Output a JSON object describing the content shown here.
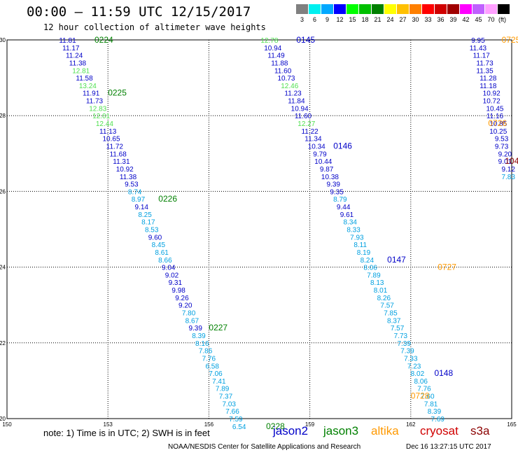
{
  "header": {
    "title": "00:00 – 11:59 UTC 12/15/2017",
    "subtitle": "12 hour collection of altimeter wave heights"
  },
  "legend": {
    "unit": "(ft)",
    "bins": [
      {
        "label": "3",
        "color": "#808080"
      },
      {
        "label": "6",
        "color": "#00f0f0"
      },
      {
        "label": "9",
        "color": "#00a8ff"
      },
      {
        "label": "12",
        "color": "#0000ff"
      },
      {
        "label": "15",
        "color": "#00ff00"
      },
      {
        "label": "18",
        "color": "#00c000"
      },
      {
        "label": "21",
        "color": "#008000"
      },
      {
        "label": "24",
        "color": "#ffff00"
      },
      {
        "label": "27",
        "color": "#ffc000"
      },
      {
        "label": "30",
        "color": "#ff8000"
      },
      {
        "label": "33",
        "color": "#ff0000"
      },
      {
        "label": "36",
        "color": "#d00000"
      },
      {
        "label": "39",
        "color": "#a00000"
      },
      {
        "label": "42",
        "color": "#ff00ff"
      },
      {
        "label": "45",
        "color": "#c060ff"
      },
      {
        "label": "70",
        "color": "#ffa0ff"
      },
      {
        "label": "",
        "color": "#000000"
      }
    ]
  },
  "axes": {
    "lon_ticks": [
      150,
      153,
      156,
      159,
      162,
      165
    ],
    "lat_ticks": [
      20,
      22,
      24,
      26,
      28,
      30
    ],
    "lon_range": [
      150,
      165
    ],
    "lat_range": [
      20,
      30
    ]
  },
  "colors": {
    "jason2": "#0000c8",
    "jason3": "#008000",
    "altika": "#ff9900",
    "cryosat": "#d00000",
    "s3a": "#8b0000",
    "label_blue": "#0000c8",
    "label_cyan": "#00a0e0",
    "label_lgreen": "#50e050"
  },
  "tracks": [
    {
      "sat": "jason2",
      "points": [
        {
          "v": "11.81",
          "lon": 151.8,
          "lat": 30.0,
          "c": "label_blue"
        },
        {
          "v": "11.17",
          "lon": 151.9,
          "lat": 29.8,
          "c": "label_blue"
        },
        {
          "v": "11.24",
          "lon": 152.0,
          "lat": 29.6,
          "c": "label_blue"
        },
        {
          "v": "11.38",
          "lon": 152.1,
          "lat": 29.4,
          "c": "label_blue"
        },
        {
          "v": "12.81",
          "lon": 152.2,
          "lat": 29.2,
          "c": "label_lgreen"
        },
        {
          "v": "11.58",
          "lon": 152.3,
          "lat": 29.0,
          "c": "label_blue"
        },
        {
          "v": "13.24",
          "lon": 152.4,
          "lat": 28.8,
          "c": "label_lgreen"
        },
        {
          "v": "11.91",
          "lon": 152.5,
          "lat": 28.6,
          "c": "label_blue"
        },
        {
          "v": "11.73",
          "lon": 152.6,
          "lat": 28.4,
          "c": "label_blue"
        },
        {
          "v": "12.83",
          "lon": 152.7,
          "lat": 28.2,
          "c": "label_lgreen"
        },
        {
          "v": "12.01",
          "lon": 152.8,
          "lat": 28.0,
          "c": "label_lgreen"
        },
        {
          "v": "12.44",
          "lon": 152.9,
          "lat": 27.8,
          "c": "label_lgreen"
        },
        {
          "v": "11.13",
          "lon": 153.0,
          "lat": 27.6,
          "c": "label_blue"
        },
        {
          "v": "10.65",
          "lon": 153.1,
          "lat": 27.4,
          "c": "label_blue"
        },
        {
          "v": "11.72",
          "lon": 153.2,
          "lat": 27.2,
          "c": "label_blue"
        },
        {
          "v": "11.68",
          "lon": 153.3,
          "lat": 27.0,
          "c": "label_blue"
        },
        {
          "v": "11.31",
          "lon": 153.4,
          "lat": 26.8,
          "c": "label_blue"
        },
        {
          "v": "10.92",
          "lon": 153.5,
          "lat": 26.6,
          "c": "label_blue"
        },
        {
          "v": "11.38",
          "lon": 153.6,
          "lat": 26.4,
          "c": "label_blue"
        },
        {
          "v": "9.53",
          "lon": 153.7,
          "lat": 26.2,
          "c": "label_blue"
        },
        {
          "v": "8.74",
          "lon": 153.8,
          "lat": 26.0,
          "c": "label_cyan"
        },
        {
          "v": "8.97",
          "lon": 153.9,
          "lat": 25.8,
          "c": "label_cyan"
        },
        {
          "v": "9.14",
          "lon": 154.0,
          "lat": 25.6,
          "c": "label_blue"
        },
        {
          "v": "8.25",
          "lon": 154.1,
          "lat": 25.4,
          "c": "label_cyan"
        },
        {
          "v": "8.17",
          "lon": 154.2,
          "lat": 25.2,
          "c": "label_cyan"
        },
        {
          "v": "8.53",
          "lon": 154.3,
          "lat": 25.0,
          "c": "label_cyan"
        },
        {
          "v": "9.60",
          "lon": 154.4,
          "lat": 24.8,
          "c": "label_blue"
        },
        {
          "v": "8.45",
          "lon": 154.5,
          "lat": 24.6,
          "c": "label_cyan"
        },
        {
          "v": "8.61",
          "lon": 154.6,
          "lat": 24.4,
          "c": "label_cyan"
        },
        {
          "v": "8.66",
          "lon": 154.7,
          "lat": 24.2,
          "c": "label_cyan"
        },
        {
          "v": "9.04",
          "lon": 154.8,
          "lat": 24.0,
          "c": "label_blue"
        },
        {
          "v": "9.02",
          "lon": 154.9,
          "lat": 23.8,
          "c": "label_blue"
        },
        {
          "v": "9.31",
          "lon": 155.0,
          "lat": 23.6,
          "c": "label_blue"
        },
        {
          "v": "9.98",
          "lon": 155.1,
          "lat": 23.4,
          "c": "label_blue"
        },
        {
          "v": "9.26",
          "lon": 155.2,
          "lat": 23.2,
          "c": "label_blue"
        },
        {
          "v": "9.20",
          "lon": 155.3,
          "lat": 23.0,
          "c": "label_blue"
        },
        {
          "v": "7.80",
          "lon": 155.4,
          "lat": 22.8,
          "c": "label_cyan"
        },
        {
          "v": "8.67",
          "lon": 155.5,
          "lat": 22.6,
          "c": "label_cyan"
        },
        {
          "v": "9.39",
          "lon": 155.6,
          "lat": 22.4,
          "c": "label_blue"
        },
        {
          "v": "8.39",
          "lon": 155.7,
          "lat": 22.2,
          "c": "label_cyan"
        },
        {
          "v": "8.16",
          "lon": 155.8,
          "lat": 22.0,
          "c": "label_cyan"
        },
        {
          "v": "7.86",
          "lon": 155.9,
          "lat": 21.8,
          "c": "label_cyan"
        },
        {
          "v": "7.76",
          "lon": 156.0,
          "lat": 21.6,
          "c": "label_cyan"
        },
        {
          "v": "6.58",
          "lon": 156.1,
          "lat": 21.4,
          "c": "label_cyan"
        },
        {
          "v": "7.06",
          "lon": 156.2,
          "lat": 21.2,
          "c": "label_cyan"
        },
        {
          "v": "7.41",
          "lon": 156.3,
          "lat": 21.0,
          "c": "label_cyan"
        },
        {
          "v": "7.89",
          "lon": 156.4,
          "lat": 20.8,
          "c": "label_cyan"
        },
        {
          "v": "7.37",
          "lon": 156.5,
          "lat": 20.6,
          "c": "label_cyan"
        },
        {
          "v": "7.03",
          "lon": 156.6,
          "lat": 20.4,
          "c": "label_cyan"
        },
        {
          "v": "7.66",
          "lon": 156.7,
          "lat": 20.2,
          "c": "label_cyan"
        },
        {
          "v": "7.59",
          "lon": 156.8,
          "lat": 20.0,
          "c": "label_cyan"
        },
        {
          "v": "6.54",
          "lon": 156.9,
          "lat": 19.8,
          "c": "label_cyan"
        }
      ]
    },
    {
      "sat": "jason2",
      "points": [
        {
          "v": "12.78",
          "lon": 157.8,
          "lat": 30.0,
          "c": "label_lgreen"
        },
        {
          "v": "10.94",
          "lon": 157.9,
          "lat": 29.8,
          "c": "label_blue"
        },
        {
          "v": "11.49",
          "lon": 158.0,
          "lat": 29.6,
          "c": "label_blue"
        },
        {
          "v": "11.88",
          "lon": 158.1,
          "lat": 29.4,
          "c": "label_blue"
        },
        {
          "v": "11.60",
          "lon": 158.2,
          "lat": 29.2,
          "c": "label_blue"
        },
        {
          "v": "10.73",
          "lon": 158.3,
          "lat": 29.0,
          "c": "label_blue"
        },
        {
          "v": "12.46",
          "lon": 158.4,
          "lat": 28.8,
          "c": "label_lgreen"
        },
        {
          "v": "11.23",
          "lon": 158.5,
          "lat": 28.6,
          "c": "label_blue"
        },
        {
          "v": "11.84",
          "lon": 158.6,
          "lat": 28.4,
          "c": "label_blue"
        },
        {
          "v": "10.94",
          "lon": 158.7,
          "lat": 28.2,
          "c": "label_blue"
        },
        {
          "v": "11.60",
          "lon": 158.8,
          "lat": 28.0,
          "c": "label_blue"
        },
        {
          "v": "12.27",
          "lon": 158.9,
          "lat": 27.8,
          "c": "label_lgreen"
        },
        {
          "v": "11.22",
          "lon": 159.0,
          "lat": 27.6,
          "c": "label_blue"
        },
        {
          "v": "11.34",
          "lon": 159.1,
          "lat": 27.4,
          "c": "label_blue"
        },
        {
          "v": "10.34",
          "lon": 159.2,
          "lat": 27.2,
          "c": "label_blue"
        },
        {
          "v": "9.79",
          "lon": 159.3,
          "lat": 27.0,
          "c": "label_blue"
        },
        {
          "v": "10.44",
          "lon": 159.4,
          "lat": 26.8,
          "c": "label_blue"
        },
        {
          "v": "9.87",
          "lon": 159.5,
          "lat": 26.6,
          "c": "label_blue"
        },
        {
          "v": "10.38",
          "lon": 159.6,
          "lat": 26.4,
          "c": "label_blue"
        },
        {
          "v": "9.39",
          "lon": 159.7,
          "lat": 26.2,
          "c": "label_blue"
        },
        {
          "v": "9.35",
          "lon": 159.8,
          "lat": 26.0,
          "c": "label_blue"
        },
        {
          "v": "8.79",
          "lon": 159.9,
          "lat": 25.8,
          "c": "label_cyan"
        },
        {
          "v": "9.44",
          "lon": 160.0,
          "lat": 25.6,
          "c": "label_blue"
        },
        {
          "v": "9.61",
          "lon": 160.1,
          "lat": 25.4,
          "c": "label_blue"
        },
        {
          "v": "8.34",
          "lon": 160.2,
          "lat": 25.2,
          "c": "label_cyan"
        },
        {
          "v": "8.33",
          "lon": 160.3,
          "lat": 25.0,
          "c": "label_cyan"
        },
        {
          "v": "7.93",
          "lon": 160.4,
          "lat": 24.8,
          "c": "label_cyan"
        },
        {
          "v": "8.11",
          "lon": 160.5,
          "lat": 24.6,
          "c": "label_cyan"
        },
        {
          "v": "8.19",
          "lon": 160.6,
          "lat": 24.4,
          "c": "label_cyan"
        },
        {
          "v": "8.24",
          "lon": 160.7,
          "lat": 24.2,
          "c": "label_cyan"
        },
        {
          "v": "8.06",
          "lon": 160.8,
          "lat": 24.0,
          "c": "label_cyan"
        },
        {
          "v": "7.89",
          "lon": 160.9,
          "lat": 23.8,
          "c": "label_cyan"
        },
        {
          "v": "8.13",
          "lon": 161.0,
          "lat": 23.6,
          "c": "label_cyan"
        },
        {
          "v": "8.01",
          "lon": 161.1,
          "lat": 23.4,
          "c": "label_cyan"
        },
        {
          "v": "8.26",
          "lon": 161.2,
          "lat": 23.2,
          "c": "label_cyan"
        },
        {
          "v": "7.57",
          "lon": 161.3,
          "lat": 23.0,
          "c": "label_cyan"
        },
        {
          "v": "7.85",
          "lon": 161.4,
          "lat": 22.8,
          "c": "label_cyan"
        },
        {
          "v": "8.37",
          "lon": 161.5,
          "lat": 22.6,
          "c": "label_cyan"
        },
        {
          "v": "7.57",
          "lon": 161.6,
          "lat": 22.4,
          "c": "label_cyan"
        },
        {
          "v": "7.73",
          "lon": 161.7,
          "lat": 22.2,
          "c": "label_cyan"
        },
        {
          "v": "7.39",
          "lon": 161.8,
          "lat": 22.0,
          "c": "label_cyan"
        },
        {
          "v": "7.39",
          "lon": 161.9,
          "lat": 21.8,
          "c": "label_cyan"
        },
        {
          "v": "7.33",
          "lon": 162.0,
          "lat": 21.6,
          "c": "label_cyan"
        },
        {
          "v": "7.23",
          "lon": 162.1,
          "lat": 21.4,
          "c": "label_cyan"
        },
        {
          "v": "8.02",
          "lon": 162.2,
          "lat": 21.2,
          "c": "label_cyan"
        },
        {
          "v": "8.06",
          "lon": 162.3,
          "lat": 21.0,
          "c": "label_cyan"
        },
        {
          "v": "7.76",
          "lon": 162.4,
          "lat": 20.8,
          "c": "label_cyan"
        },
        {
          "v": "7.60",
          "lon": 162.5,
          "lat": 20.6,
          "c": "label_cyan"
        },
        {
          "v": "7.81",
          "lon": 162.6,
          "lat": 20.4,
          "c": "label_cyan"
        },
        {
          "v": "8.39",
          "lon": 162.7,
          "lat": 20.2,
          "c": "label_cyan"
        },
        {
          "v": "7.69",
          "lon": 162.8,
          "lat": 20.0,
          "c": "label_cyan"
        }
      ]
    },
    {
      "sat": "jason2",
      "points": [
        {
          "v": "9.95",
          "lon": 164.0,
          "lat": 30.0,
          "c": "label_blue"
        },
        {
          "v": "11.43",
          "lon": 164.0,
          "lat": 29.8,
          "c": "label_blue"
        },
        {
          "v": "11.17",
          "lon": 164.1,
          "lat": 29.6,
          "c": "label_blue"
        },
        {
          "v": "11.73",
          "lon": 164.2,
          "lat": 29.4,
          "c": "label_blue"
        },
        {
          "v": "11.35",
          "lon": 164.2,
          "lat": 29.2,
          "c": "label_blue"
        },
        {
          "v": "11.28",
          "lon": 164.3,
          "lat": 29.0,
          "c": "label_blue"
        },
        {
          "v": "11.18",
          "lon": 164.3,
          "lat": 28.8,
          "c": "label_blue"
        },
        {
          "v": "10.92",
          "lon": 164.4,
          "lat": 28.6,
          "c": "label_blue"
        },
        {
          "v": "10.72",
          "lon": 164.4,
          "lat": 28.4,
          "c": "label_blue"
        },
        {
          "v": "10.45",
          "lon": 164.5,
          "lat": 28.2,
          "c": "label_blue"
        },
        {
          "v": "11.16",
          "lon": 164.5,
          "lat": 28.0,
          "c": "label_blue"
        },
        {
          "v": "10.85",
          "lon": 164.6,
          "lat": 27.8,
          "c": "label_blue"
        },
        {
          "v": "10.25",
          "lon": 164.6,
          "lat": 27.6,
          "c": "label_blue"
        },
        {
          "v": "9.53",
          "lon": 164.7,
          "lat": 27.4,
          "c": "label_blue"
        },
        {
          "v": "9.73",
          "lon": 164.7,
          "lat": 27.2,
          "c": "label_blue"
        },
        {
          "v": "9.20",
          "lon": 164.8,
          "lat": 27.0,
          "c": "label_blue"
        },
        {
          "v": "9.01",
          "lon": 164.8,
          "lat": 26.8,
          "c": "label_blue"
        },
        {
          "v": "9.12",
          "lon": 164.9,
          "lat": 26.6,
          "c": "label_blue"
        },
        {
          "v": "7.83",
          "lon": 164.9,
          "lat": 26.4,
          "c": "label_cyan"
        }
      ]
    }
  ],
  "pass_labels": [
    {
      "text": "0224",
      "lon": 152.6,
      "lat": 30.0,
      "sat": "jason3"
    },
    {
      "text": "0225",
      "lon": 153.0,
      "lat": 28.6,
      "sat": "jason3"
    },
    {
      "text": "0226",
      "lon": 154.5,
      "lat": 25.8,
      "sat": "jason3"
    },
    {
      "text": "0227",
      "lon": 156.0,
      "lat": 22.4,
      "sat": "jason3"
    },
    {
      "text": "0228",
      "lon": 157.7,
      "lat": 19.8,
      "sat": "jason3"
    },
    {
      "text": "0145",
      "lon": 158.6,
      "lat": 30.0,
      "sat": "jason2"
    },
    {
      "text": "0146",
      "lon": 159.7,
      "lat": 27.2,
      "sat": "jason2"
    },
    {
      "text": "0147",
      "lon": 161.3,
      "lat": 24.2,
      "sat": "jason2"
    },
    {
      "text": "0148",
      "lon": 162.7,
      "lat": 21.2,
      "sat": "jason2"
    },
    {
      "text": "0725",
      "lon": 164.7,
      "lat": 30.0,
      "sat": "altika"
    },
    {
      "text": "0726",
      "lon": 164.3,
      "lat": 27.8,
      "sat": "altika"
    },
    {
      "text": "0727",
      "lon": 162.8,
      "lat": 24.0,
      "sat": "altika"
    },
    {
      "text": "0728",
      "lon": 162.0,
      "lat": 20.6,
      "sat": "altika"
    },
    {
      "text": "1048",
      "lon": 164.8,
      "lat": 26.8,
      "sat": "s3a"
    }
  ],
  "footer": {
    "note": "note:  1) Time is in UTC;  2) SWH is in feet",
    "satellites": [
      {
        "name": "jason2",
        "key": "jason2"
      },
      {
        "name": "jason3",
        "key": "jason3"
      },
      {
        "name": "altika",
        "key": "altika"
      },
      {
        "name": "cryosat",
        "key": "cryosat"
      },
      {
        "name": "s3a",
        "key": "s3a"
      }
    ],
    "credit": "NOAA/NESDIS Center for Satellite Applications and Research",
    "timestamp": "Dec 16 13:27:15 UTC 2017"
  }
}
